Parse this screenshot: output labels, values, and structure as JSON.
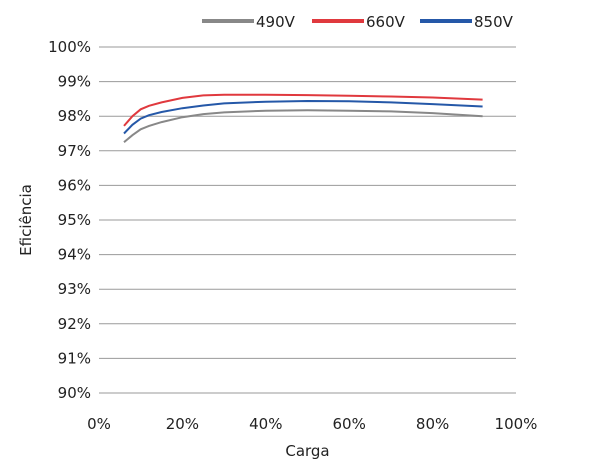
{
  "chart_data": {
    "type": "line",
    "xlabel": "Carga",
    "ylabel": "Eficiência",
    "xlim": [
      0,
      100
    ],
    "ylim": [
      90,
      100
    ],
    "x_ticks": [
      "0%",
      "20%",
      "40%",
      "60%",
      "80%",
      "100%"
    ],
    "y_ticks": [
      "90%",
      "91%",
      "92%",
      "93%",
      "94%",
      "95%",
      "96%",
      "97%",
      "98%",
      "99%",
      "100%"
    ],
    "grid": true,
    "legend_position": "top",
    "series": [
      {
        "name": "490V",
        "color": "#888888",
        "x": [
          6,
          8,
          10,
          12,
          15,
          20,
          25,
          30,
          40,
          50,
          60,
          70,
          80,
          92
        ],
        "y": [
          97.25,
          97.45,
          97.62,
          97.72,
          97.83,
          97.97,
          98.06,
          98.11,
          98.16,
          98.17,
          98.16,
          98.14,
          98.09,
          98.0
        ]
      },
      {
        "name": "660V",
        "color": "#e0393e",
        "x": [
          6,
          8,
          10,
          12,
          15,
          20,
          25,
          30,
          40,
          50,
          60,
          70,
          80,
          92
        ],
        "y": [
          97.72,
          98.0,
          98.2,
          98.3,
          98.4,
          98.53,
          98.6,
          98.62,
          98.62,
          98.61,
          98.59,
          98.57,
          98.54,
          98.48
        ]
      },
      {
        "name": "850V",
        "color": "#2558a8",
        "x": [
          6,
          8,
          10,
          12,
          15,
          20,
          25,
          30,
          40,
          50,
          60,
          70,
          80,
          92
        ],
        "y": [
          97.5,
          97.75,
          97.93,
          98.03,
          98.12,
          98.23,
          98.31,
          98.37,
          98.42,
          98.44,
          98.43,
          98.4,
          98.35,
          98.28
        ]
      }
    ]
  }
}
